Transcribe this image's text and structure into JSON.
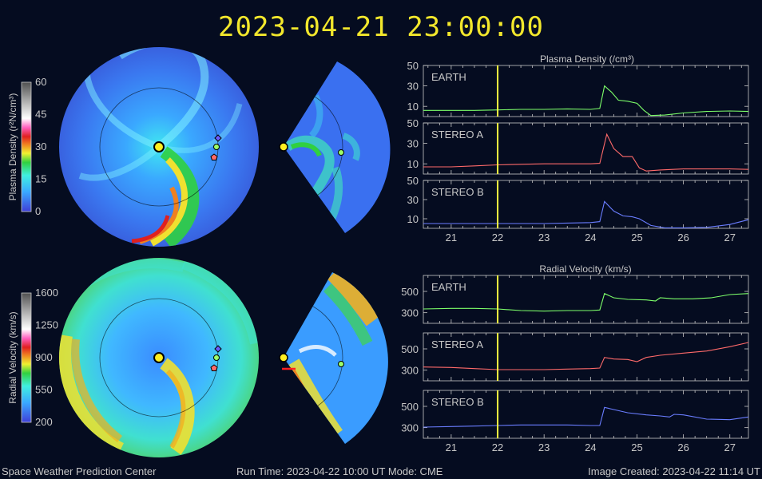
{
  "timestamp": "2023-04-21 23:00:00",
  "colors": {
    "background": "#050c20",
    "title": "#f2e72c",
    "earth": "#7dff6a",
    "stereo_a": "#ff6a6a",
    "stereo_b": "#6a7dff",
    "time_marker": "#ffff40"
  },
  "colorbars": {
    "density": {
      "label": "Plasma Density (r²N/cm³)",
      "ticks": [
        "60",
        "45",
        "30",
        "15",
        "0"
      ]
    },
    "velocity": {
      "label": "Radial Velocity (km/s)",
      "ticks": [
        "1600",
        "1250",
        "900",
        "550",
        "200"
      ]
    }
  },
  "chart_data": [
    {
      "type": "line",
      "title": "Plasma Density (/cm³)",
      "x_ticks": [
        "21",
        "22",
        "23",
        "24",
        "25",
        "26",
        "27"
      ],
      "xlim": [
        20.4,
        27.4
      ],
      "current_time": 22.0,
      "panels": [
        {
          "name": "EARTH",
          "color": "#7dff6a",
          "ylim": [
            0,
            50
          ],
          "yticks": [
            "50",
            "30",
            "10"
          ],
          "x": [
            20.4,
            21.0,
            21.5,
            22.0,
            22.5,
            23.0,
            23.5,
            24.0,
            24.2,
            24.3,
            24.45,
            24.6,
            24.8,
            25.0,
            25.15,
            25.3,
            25.6,
            26.0,
            26.5,
            27.0,
            27.4
          ],
          "y": [
            6,
            6,
            6,
            6.5,
            7,
            7,
            7.5,
            7,
            8,
            30,
            24,
            16,
            15,
            13,
            6,
            1,
            1.5,
            3.5,
            5,
            5.5,
            5
          ]
        },
        {
          "name": "STEREO A",
          "color": "#ff6a6a",
          "ylim": [
            0,
            50
          ],
          "yticks": [
            "50",
            "30",
            "10"
          ],
          "x": [
            20.4,
            21.0,
            21.5,
            22.0,
            22.5,
            23.0,
            23.5,
            24.0,
            24.2,
            24.35,
            24.5,
            24.7,
            24.9,
            25.05,
            25.2,
            25.5,
            26.0,
            26.5,
            27.0,
            27.4
          ],
          "y": [
            7,
            7,
            8,
            9,
            9.5,
            10,
            10,
            10,
            10.5,
            39,
            25,
            17,
            17,
            6,
            3,
            4,
            5,
            5,
            5,
            4.5
          ]
        },
        {
          "name": "STEREO B",
          "color": "#6a7dff",
          "ylim": [
            0,
            50
          ],
          "yticks": [
            "50",
            "30",
            "10"
          ],
          "x": [
            20.4,
            21.0,
            21.5,
            22.0,
            22.5,
            23.0,
            23.5,
            24.0,
            24.2,
            24.3,
            24.5,
            24.7,
            24.9,
            25.05,
            25.3,
            25.6,
            26.0,
            26.5,
            27.0,
            27.4
          ],
          "y": [
            5,
            5,
            5,
            5,
            5,
            5,
            5.5,
            6,
            7,
            28,
            18,
            13,
            12,
            10,
            3,
            0.5,
            0.5,
            1,
            4,
            9
          ]
        }
      ]
    },
    {
      "type": "line",
      "title": "Radial Velocity (km/s)",
      "x_ticks": [
        "21",
        "22",
        "23",
        "24",
        "25",
        "26",
        "27"
      ],
      "xlim": [
        20.4,
        27.4
      ],
      "current_time": 22.0,
      "panels": [
        {
          "name": "EARTH",
          "color": "#7dff6a",
          "ylim": [
            200,
            650
          ],
          "yticks": [
            "500",
            "300"
          ],
          "x": [
            20.4,
            21.0,
            21.5,
            22.0,
            22.5,
            23.0,
            23.5,
            24.0,
            24.2,
            24.3,
            24.5,
            24.8,
            25.2,
            25.4,
            25.5,
            25.8,
            26.2,
            26.6,
            27.0,
            27.4
          ],
          "y": [
            335,
            340,
            340,
            335,
            320,
            315,
            320,
            320,
            325,
            480,
            440,
            425,
            420,
            410,
            440,
            430,
            430,
            440,
            470,
            480
          ]
        },
        {
          "name": "STEREO A",
          "color": "#ff6a6a",
          "ylim": [
            200,
            650
          ],
          "yticks": [
            "500",
            "300"
          ],
          "x": [
            20.4,
            21.0,
            21.5,
            22.0,
            22.5,
            23.0,
            23.5,
            24.0,
            24.2,
            24.3,
            24.5,
            24.8,
            25.0,
            25.2,
            25.5,
            26.0,
            26.5,
            27.0,
            27.4
          ],
          "y": [
            330,
            325,
            315,
            305,
            305,
            305,
            310,
            315,
            320,
            420,
            405,
            400,
            380,
            420,
            440,
            460,
            480,
            520,
            560
          ]
        },
        {
          "name": "STEREO B",
          "color": "#6a7dff",
          "ylim": [
            200,
            650
          ],
          "yticks": [
            "500",
            "300"
          ],
          "x": [
            20.4,
            21.0,
            21.5,
            22.0,
            22.5,
            23.0,
            23.5,
            24.0,
            24.2,
            24.3,
            24.5,
            24.8,
            25.2,
            25.5,
            25.7,
            25.8,
            26.0,
            26.5,
            27.0,
            27.4
          ],
          "y": [
            305,
            310,
            315,
            320,
            325,
            325,
            325,
            320,
            320,
            490,
            470,
            440,
            420,
            410,
            400,
            425,
            420,
            380,
            375,
            400
          ]
        }
      ]
    }
  ],
  "footer": {
    "org": "Space Weather Prediction Center",
    "run_time": "Run Time: 2023-04-22 10:00 UT   Mode: CME",
    "created": "Image Created: 2023-04-22 11:14 UT"
  }
}
